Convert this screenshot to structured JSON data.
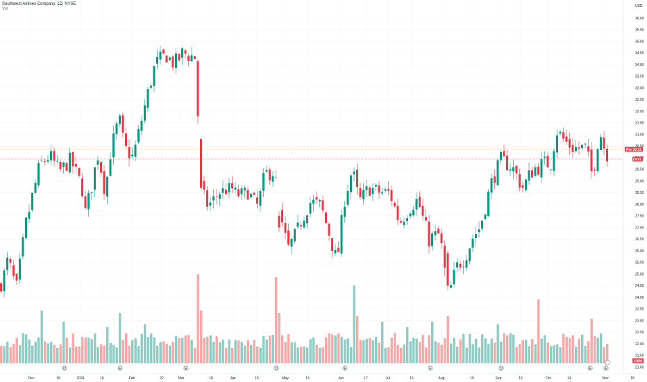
{
  "chart_data": {
    "type": "candlestick",
    "title": "Southwest Airlines Company, 1D, NYSE",
    "volume_label": "Vol",
    "currency": "USD",
    "x_tick_labels": [
      "Dec",
      "18",
      "2024",
      "16",
      "Feb",
      "22",
      "Mar",
      "18",
      "Apr",
      "15",
      "May",
      "13",
      "Jun",
      "17",
      "Jul",
      "15",
      "Aug",
      "19",
      "Sep",
      "16",
      "Oct",
      "14",
      "Nov",
      "18"
    ],
    "y_tick_labels": [
      "36.00",
      "35.50",
      "35.00",
      "34.50",
      "34.00",
      "33.50",
      "33.00",
      "32.50",
      "32.00",
      "31.50",
      "31.00",
      "30.50",
      "30.00",
      "29.50",
      "29.00",
      "28.50",
      "28.00",
      "27.50",
      "27.00",
      "26.50",
      "26.00",
      "25.50",
      "25.00",
      "24.50",
      "24.00",
      "23.50",
      "23.00",
      "22.50",
      "22.00",
      "21.50",
      "21.00"
    ],
    "ylim": [
      20.5,
      36.5
    ],
    "price_markers": [
      {
        "label": "Pre",
        "value": "30.32",
        "color": "#f23645"
      },
      {
        "label": "",
        "value": "29.91",
        "color": "#f23645"
      }
    ],
    "volume_marker": {
      "value": "5.158M",
      "color": "#f23645"
    },
    "event_marks": [
      "D",
      "E",
      "E",
      "D",
      "E",
      "E",
      "D",
      "E",
      "E",
      "D",
      "E",
      "E",
      "D",
      "E",
      "E",
      "D",
      "E",
      "E"
    ],
    "colors": {
      "up": "#089981",
      "down": "#f23645",
      "vol_up": "#8fcdc4",
      "vol_down": "#f7a9a7",
      "grid": "#f0f3fa"
    },
    "segments": [
      [
        0,
        24.5,
        0,
        0
      ],
      [
        10,
        25.7,
        4,
        0.25
      ],
      [
        22,
        24.4,
        3,
        0.25
      ],
      [
        34,
        26.9,
        4,
        0.25
      ],
      [
        56,
        29.7,
        10,
        0.4
      ],
      [
        70,
        30.1,
        4,
        0.4
      ],
      [
        84,
        29.4,
        6,
        0.35
      ],
      [
        100,
        29.9,
        4,
        0.35
      ],
      [
        116,
        28.8,
        4,
        0.35
      ],
      [
        122,
        27.6,
        2,
        0.3
      ],
      [
        140,
        30.2,
        6,
        0.4
      ],
      [
        150,
        28.5,
        4,
        0.35
      ],
      [
        158,
        30.3,
        2,
        0.35
      ],
      [
        170,
        31.7,
        3,
        0.35
      ],
      [
        178,
        30.4,
        3,
        0.35
      ],
      [
        190,
        30.0,
        4,
        0.35
      ],
      [
        210,
        32.6,
        6,
        0.35
      ],
      [
        222,
        34.0,
        3,
        0.35
      ],
      [
        238,
        34.4,
        8,
        0.4
      ],
      [
        250,
        34.0,
        3,
        0.35
      ],
      [
        262,
        34.5,
        4,
        0.4
      ],
      [
        280,
        34.3,
        5,
        0.4
      ],
      [
        288,
        28.7,
        1,
        0.4
      ],
      [
        298,
        27.9,
        3,
        0.3
      ],
      [
        314,
        28.5,
        4,
        0.3
      ],
      [
        332,
        28.7,
        4,
        0.3
      ],
      [
        340,
        28.4,
        2,
        0.3
      ],
      [
        356,
        28.5,
        5,
        0.3
      ],
      [
        370,
        27.9,
        4,
        0.3
      ],
      [
        380,
        29.3,
        3,
        0.35
      ],
      [
        394,
        29.4,
        3,
        0.35
      ],
      [
        402,
        27.3,
        2,
        0.4
      ],
      [
        414,
        26.1,
        3,
        0.35
      ],
      [
        430,
        27.1,
        4,
        0.3
      ],
      [
        446,
        28.1,
        4,
        0.3
      ],
      [
        460,
        28.0,
        3,
        0.3
      ],
      [
        472,
        26.8,
        3,
        0.3
      ],
      [
        484,
        25.5,
        3,
        0.35
      ],
      [
        494,
        28.1,
        5,
        0.35
      ],
      [
        506,
        29.5,
        3,
        0.35
      ],
      [
        516,
        28.1,
        4,
        0.35
      ],
      [
        530,
        28.7,
        4,
        0.35
      ],
      [
        546,
        28.5,
        4,
        0.35
      ],
      [
        560,
        28.5,
        4,
        0.35
      ],
      [
        574,
        27.2,
        3,
        0.35
      ],
      [
        590,
        27.9,
        4,
        0.35
      ],
      [
        600,
        28.2,
        2,
        0.35
      ],
      [
        616,
        26.5,
        4,
        0.4
      ],
      [
        632,
        26.7,
        4,
        0.4
      ],
      [
        644,
        24.0,
        3,
        0.4
      ],
      [
        656,
        25.3,
        3,
        0.35
      ],
      [
        668,
        25.7,
        3,
        0.35
      ],
      [
        680,
        26.6,
        3,
        0.35
      ],
      [
        690,
        27.0,
        2,
        0.3
      ],
      [
        706,
        28.9,
        4,
        0.35
      ],
      [
        720,
        29.9,
        4,
        0.35
      ],
      [
        736,
        29.6,
        4,
        0.35
      ],
      [
        752,
        28.7,
        4,
        0.4
      ],
      [
        766,
        29.5,
        4,
        0.4
      ],
      [
        780,
        29.7,
        3,
        0.4
      ],
      [
        792,
        29.8,
        3,
        0.4
      ],
      [
        800,
        31.2,
        2,
        0.4
      ],
      [
        812,
        30.7,
        3,
        0.4
      ],
      [
        826,
        30.4,
        4,
        0.4
      ],
      [
        842,
        30.4,
        4,
        0.4
      ],
      [
        852,
        29.2,
        2,
        0.4
      ],
      [
        862,
        31.2,
        3,
        0.4
      ],
      [
        870,
        30.3,
        2,
        0.35
      ],
      [
        876,
        29.91,
        1,
        0.3
      ]
    ],
    "volume_spikes": {
      "60": 1.9,
      "90": 1.5,
      "152": 1.3,
      "170": 1.8,
      "208": 1.4,
      "282": 3.2,
      "288": 1.9,
      "396": 3.1,
      "402": 1.8,
      "508": 2.8,
      "514": 1.7,
      "550": 1.5,
      "584": 1.3,
      "620": 1.5,
      "644": 1.7,
      "716": 1.4,
      "774": 2.3,
      "850": 1.6,
      "872": 0.7
    }
  }
}
